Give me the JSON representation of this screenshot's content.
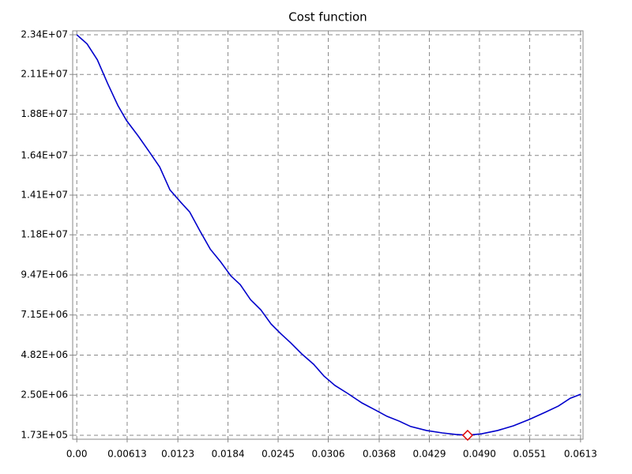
{
  "chart_data": {
    "type": "line",
    "title": "Cost function",
    "x": [
      0,
      0.00125,
      0.0025,
      0.00375,
      0.005,
      0.00605,
      0.00749,
      0.00884,
      0.01009,
      0.01134,
      0.01259,
      0.01374,
      0.01499,
      0.01624,
      0.01749,
      0.01874,
      0.01989,
      0.02114,
      0.02239,
      0.02364,
      0.02479,
      0.02604,
      0.02738,
      0.02882,
      0.03007,
      0.03142,
      0.03296,
      0.03469,
      0.03632,
      0.03776,
      0.0392,
      0.04064,
      0.04256,
      0.04448,
      0.04612,
      0.04756,
      0.04929,
      0.05121,
      0.05313,
      0.05505,
      0.05697,
      0.05861,
      0.06005,
      0.0613
    ],
    "series": [
      {
        "color": "#0000cc",
        "values": [
          23400000,
          22870000,
          21950000,
          20580000,
          19300000,
          18430000,
          17520000,
          16600000,
          15730000,
          14400000,
          13720000,
          13120000,
          12020000,
          10970000,
          10240000,
          9420000,
          8910000,
          8040000,
          7450000,
          6630000,
          6080000,
          5530000,
          4890000,
          4290000,
          3610000,
          3060000,
          2600000,
          2050000,
          1640000,
          1270000,
          1000000,
          680000,
          450000,
          310000,
          219000,
          173000,
          260000,
          450000,
          720000,
          1090000,
          1500000,
          1870000,
          2320000,
          2550000
        ]
      }
    ],
    "marker": {
      "x": 0.04756,
      "y": 173000,
      "color": "#dd0000"
    },
    "xlim": [
      -0.0005,
      0.0616
    ],
    "ylim": [
      -57000,
      23630000
    ],
    "xticks": [
      {
        "value": 0,
        "label": "0.00"
      },
      0.00613,
      0.0123,
      0.0184,
      0.0245,
      0.0306,
      0.0368,
      0.0429,
      {
        "value": 0.049,
        "label": "0.0490"
      },
      0.0551,
      0.0613
    ],
    "yticks": [
      {
        "value": 173000,
        "label": "1.73E+05"
      },
      {
        "value": 2500000,
        "label": "2.50E+06"
      },
      {
        "value": 4820000,
        "label": "4.82E+06"
      },
      {
        "value": 7150000,
        "label": "7.15E+06"
      },
      {
        "value": 9470000,
        "label": "9.47E+06"
      },
      {
        "value": 11800000,
        "label": "1.18E+07"
      },
      {
        "value": 14100000,
        "label": "1.41E+07"
      },
      {
        "value": 16400000,
        "label": "1.64E+07"
      },
      {
        "value": 18800000,
        "label": "1.88E+07"
      },
      {
        "value": 21100000,
        "label": "2.11E+07"
      },
      {
        "value": 23400000,
        "label": "2.34E+07"
      }
    ],
    "grid": true
  }
}
